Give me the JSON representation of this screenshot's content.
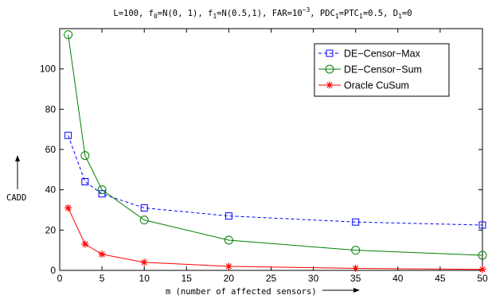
{
  "chart_data": {
    "type": "line",
    "title": {
      "prefix": "L=100, f",
      "f0_sub": "0",
      "f0_rest": "=N(0, 1), f",
      "f1_sub": "1",
      "f1_rest": "=N(0.5,1), FAR=10",
      "far_sup": "−3",
      "pdc_pre": ", PDC",
      "pdc_sub": "1",
      "ptc_pre": "=PTC",
      "ptc_sub": "1",
      "d_pre": "=0.5, D",
      "d_sub": "1",
      "d_rest": "=0"
    },
    "xlabel": "m (number of affected sensors)",
    "ylabel": "CADD",
    "xlim": [
      0,
      50
    ],
    "ylim": [
      0,
      120
    ],
    "xticks": [
      0,
      5,
      10,
      15,
      20,
      25,
      30,
      35,
      40,
      45,
      50
    ],
    "yticks": [
      0,
      20,
      40,
      60,
      80,
      100
    ],
    "grid": false,
    "legend_position": "top-right",
    "series": [
      {
        "name": "DE−Censor−Max",
        "color": "#0000ff",
        "line": "dashed",
        "marker": "square",
        "x": [
          1,
          3,
          5,
          10,
          20,
          35,
          50
        ],
        "y": [
          67,
          44,
          38,
          31,
          27,
          24,
          22.5
        ]
      },
      {
        "name": "DE−Censor−Sum",
        "color": "#008000",
        "line": "solid",
        "marker": "circle",
        "x": [
          1,
          3,
          5,
          10,
          20,
          35,
          50
        ],
        "y": [
          117,
          57,
          40,
          25,
          15,
          10,
          7.5
        ]
      },
      {
        "name": "Oracle CuSum",
        "color": "#ff0000",
        "line": "solid",
        "marker": "star",
        "x": [
          1,
          3,
          5,
          10,
          20,
          35,
          50
        ],
        "y": [
          31,
          13,
          8,
          4,
          2,
          1,
          0.5
        ]
      }
    ]
  }
}
